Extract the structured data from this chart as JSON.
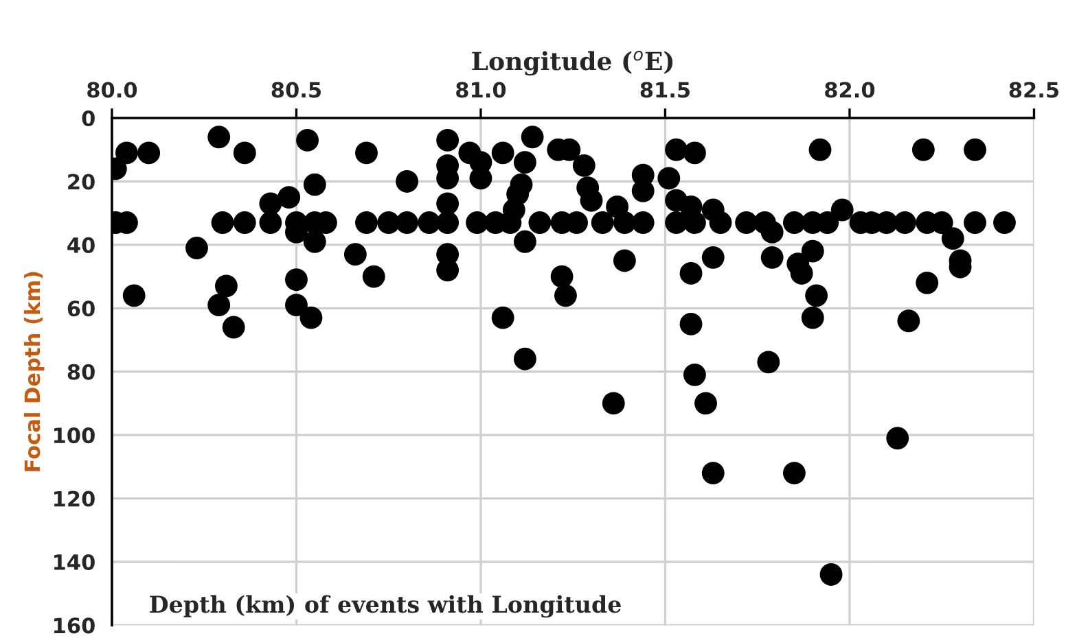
{
  "chart_data": {
    "type": "scatter",
    "xlabel": "Longitude ($^{o}$E)",
    "ylabel": "Focal Depth (km)",
    "annotations": [
      "Depth (km) of events with Longitude"
    ],
    "xlim": [
      80.0,
      82.5
    ],
    "xticks": [
      {
        "value": 80.0,
        "label": "80.0"
      },
      {
        "value": 80.5,
        "label": "80.5"
      },
      {
        "value": 81.0,
        "label": "81.0"
      },
      {
        "value": 81.5,
        "label": "81.5"
      },
      {
        "value": 82.0,
        "label": "82.0"
      },
      {
        "value": 82.5,
        "label": "82.5"
      }
    ],
    "ylim": [
      160,
      0
    ],
    "yticks": [
      0,
      20,
      40,
      60,
      80,
      100,
      120,
      140,
      160
    ],
    "grid": true,
    "marker": "circle",
    "legend": false,
    "series": [
      {
        "color": "#000000",
        "x": [
          80.01,
          80.04,
          80.1,
          80.01,
          80.04,
          80.06,
          80.29,
          80.36,
          80.23,
          80.29,
          80.31,
          80.33,
          80.3,
          80.36,
          80.43,
          80.48,
          80.43,
          80.5,
          80.5,
          80.55,
          80.58,
          80.53,
          80.55,
          80.55,
          80.5,
          80.5,
          80.54,
          80.66,
          80.69,
          80.71,
          80.69,
          80.75,
          80.8,
          80.86,
          80.91,
          80.8,
          80.91,
          80.91,
          80.91,
          80.91,
          80.91,
          80.91,
          80.97,
          81.0,
          81.0,
          80.99,
          81.04,
          81.08,
          81.06,
          81.12,
          81.11,
          81.1,
          81.09,
          81.12,
          81.14,
          81.06,
          81.12,
          81.21,
          81.24,
          81.28,
          81.29,
          81.3,
          81.44,
          81.44,
          81.51,
          81.53,
          81.58,
          81.37,
          81.53,
          81.57,
          81.63,
          81.92,
          82.2,
          82.34,
          81.98,
          81.16,
          81.22,
          81.26,
          81.33,
          81.39,
          81.44,
          81.53,
          81.58,
          81.65,
          81.72,
          81.77,
          81.85,
          81.9,
          81.94,
          82.03,
          82.06,
          82.1,
          82.15,
          82.21,
          82.25,
          82.34,
          82.42,
          81.79,
          82.28,
          81.39,
          81.63,
          81.79,
          81.9,
          81.86,
          81.87,
          81.57,
          81.22,
          81.23,
          81.91,
          81.9,
          82.3,
          82.3,
          82.21,
          82.16,
          81.57,
          81.78,
          81.58,
          81.36,
          81.61,
          81.63,
          81.85,
          82.13,
          81.95
        ],
        "values": [
          16,
          11,
          11,
          33,
          33,
          56,
          6,
          11,
          41,
          59,
          53,
          66,
          33,
          33,
          27,
          25,
          33,
          36,
          33,
          33,
          33,
          7,
          21,
          39,
          51,
          59,
          63,
          43,
          11,
          50,
          33,
          33,
          33,
          33,
          33,
          20,
          7,
          15,
          19,
          27,
          43,
          48,
          11,
          14,
          19,
          33,
          33,
          33,
          11,
          14,
          21,
          24,
          29,
          39,
          6,
          63,
          76,
          10,
          10,
          15,
          22,
          26,
          18,
          23,
          19,
          10,
          11,
          28,
          26,
          28,
          29,
          10,
          10,
          10,
          29,
          33,
          33,
          33,
          33,
          33,
          33,
          33,
          33,
          33,
          33,
          33,
          33,
          33,
          33,
          33,
          33,
          33,
          33,
          33,
          33,
          33,
          33,
          36,
          38,
          45,
          44,
          44,
          42,
          46,
          49,
          49,
          50,
          56,
          56,
          63,
          45,
          47,
          52,
          64,
          65,
          77,
          81,
          90,
          90,
          112,
          112,
          101,
          144
        ]
      }
    ]
  }
}
